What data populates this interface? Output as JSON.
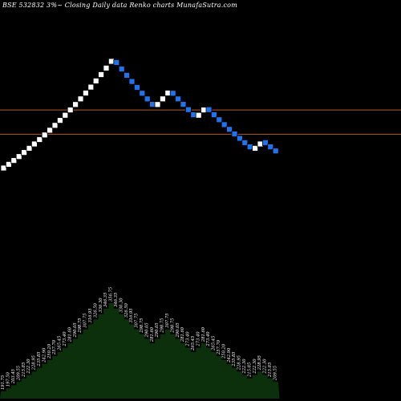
{
  "title": "BSE 532832  3%~  Closing Daily data  Renko  charts MunafaSutra.com",
  "colors": {
    "background": "#000000",
    "up_brick": "#ffffff",
    "down_brick": "#1e74ee",
    "reference_line": "#b45a28",
    "volume_fill": "#0b300b",
    "label_text": "#ffffff"
  },
  "chart_data": {
    "type": "renko",
    "brick_pct": 3,
    "bricks": [
      {
        "dir": "up",
        "value": 191.75
      },
      {
        "dir": "up",
        "value": 197.5
      },
      {
        "dir": "up",
        "value": 203.45
      },
      {
        "dir": "up",
        "value": 209.55
      },
      {
        "dir": "up",
        "value": 215.85
      },
      {
        "dir": "up",
        "value": 222.3
      },
      {
        "dir": "up",
        "value": 228.95
      },
      {
        "dir": "up",
        "value": 235.85
      },
      {
        "dir": "up",
        "value": 242.9
      },
      {
        "dir": "up",
        "value": 250.2
      },
      {
        "dir": "up",
        "value": 257.7
      },
      {
        "dir": "up",
        "value": 265.45
      },
      {
        "dir": "up",
        "value": 273.4
      },
      {
        "dir": "up",
        "value": 281.6
      },
      {
        "dir": "up",
        "value": 290.05
      },
      {
        "dir": "up",
        "value": 298.75
      },
      {
        "dir": "up",
        "value": 307.75
      },
      {
        "dir": "up",
        "value": 316.95
      },
      {
        "dir": "up",
        "value": 326.5
      },
      {
        "dir": "up",
        "value": 336.3
      },
      {
        "dir": "up",
        "value": 346.35
      },
      {
        "dir": "up",
        "value": 356.75
      },
      {
        "dir": "down",
        "value": 346.35
      },
      {
        "dir": "down",
        "value": 336.3
      },
      {
        "dir": "down",
        "value": 326.5
      },
      {
        "dir": "down",
        "value": 316.95
      },
      {
        "dir": "down",
        "value": 307.75
      },
      {
        "dir": "down",
        "value": 298.75
      },
      {
        "dir": "down",
        "value": 290.05
      },
      {
        "dir": "down",
        "value": 281.6
      },
      {
        "dir": "up",
        "value": 290.05
      },
      {
        "dir": "up",
        "value": 298.75
      },
      {
        "dir": "up",
        "value": 307.75
      },
      {
        "dir": "down",
        "value": 298.75
      },
      {
        "dir": "down",
        "value": 290.05
      },
      {
        "dir": "down",
        "value": 281.6
      },
      {
        "dir": "down",
        "value": 273.4
      },
      {
        "dir": "down",
        "value": 265.45
      },
      {
        "dir": "up",
        "value": 273.4
      },
      {
        "dir": "up",
        "value": 281.6
      },
      {
        "dir": "down",
        "value": 273.4
      },
      {
        "dir": "down",
        "value": 265.45
      },
      {
        "dir": "down",
        "value": 257.7
      },
      {
        "dir": "down",
        "value": 250.2
      },
      {
        "dir": "down",
        "value": 242.9
      },
      {
        "dir": "down",
        "value": 235.85
      },
      {
        "dir": "down",
        "value": 228.95
      },
      {
        "dir": "down",
        "value": 222.3
      },
      {
        "dir": "down",
        "value": 215.85
      },
      {
        "dir": "up",
        "value": 222.3
      },
      {
        "dir": "up",
        "value": 228.95
      },
      {
        "dir": "down",
        "value": 222.3
      },
      {
        "dir": "down",
        "value": 215.85
      },
      {
        "dir": "down",
        "value": 209.55
      }
    ],
    "reference_lines": [
      281.6,
      250.2
    ],
    "volume_labels": [
      "191.75",
      "197.50",
      "203.45",
      "209.55",
      "215.85",
      "222.30",
      "228.95",
      "235.85",
      "242.90",
      "250.20",
      "257.70",
      "265.45",
      "273.40",
      "281.60",
      "290.05",
      "298.75",
      "307.75",
      "316.95",
      "326.50",
      "336.30",
      "346.35",
      "356.75",
      "346.35",
      "336.30",
      "326.50",
      "316.95",
      "307.75",
      "298.75",
      "290.05",
      "281.60",
      "290.05",
      "298.75",
      "307.75",
      "298.75",
      "290.05",
      "281.60",
      "273.40",
      "265.45",
      "273.40",
      "281.60",
      "273.40",
      "265.45",
      "257.70",
      "250.20",
      "242.90",
      "235.85",
      "228.95",
      "222.30",
      "215.85",
      "222.30",
      "228.95",
      "222.30",
      "215.85",
      "209.55"
    ]
  }
}
